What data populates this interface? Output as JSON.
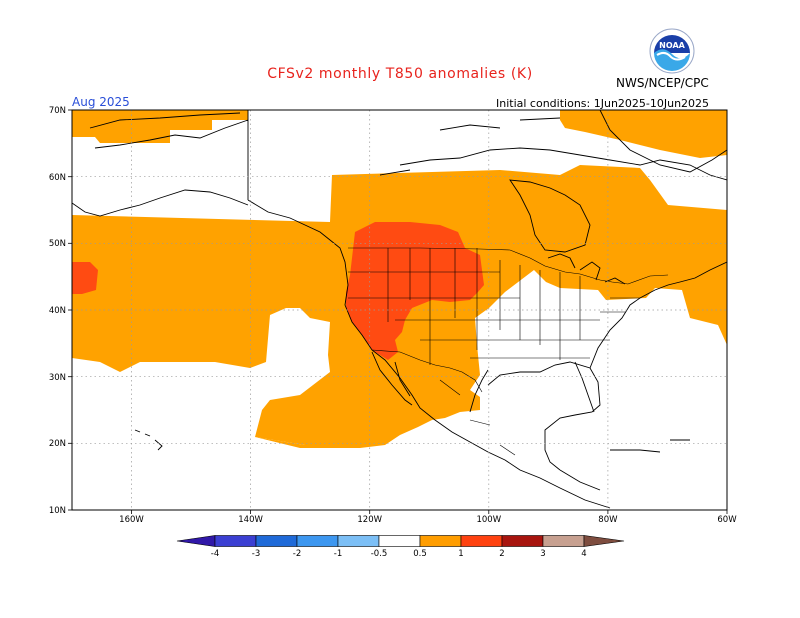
{
  "header": {
    "title": "CFSv2 monthly T850 anomalies (K)",
    "agency": "NWS/NCEP/CPC",
    "valid_month": "Aug 2025",
    "initial_conditions": "Initial conditions: 1Jun2025-10Jun2025",
    "logo": "noaa-logo-icon"
  },
  "map": {
    "lat_labels": [
      "70N",
      "60N",
      "50N",
      "40N",
      "30N",
      "20N",
      "10N"
    ],
    "lon_labels": [
      "160W",
      "140W",
      "120W",
      "100W",
      "80W",
      "60W"
    ]
  },
  "colorbar": {
    "tick_labels": [
      "-4",
      "-3",
      "-2",
      "-1",
      "-0.5",
      "0.5",
      "1",
      "2",
      "3",
      "4"
    ],
    "colors": [
      "#3018a8",
      "#3b3fd2",
      "#1f6ad8",
      "#3d97f0",
      "#7cbff6",
      "#ffffff",
      "#ff9d00",
      "#ff4210",
      "#a8150f",
      "#c7a090",
      "#7e4d3f"
    ]
  },
  "anomaly_colors": {
    "0.5_to_1": "#ffa200",
    "1_to_2": "#ff4b12"
  }
}
